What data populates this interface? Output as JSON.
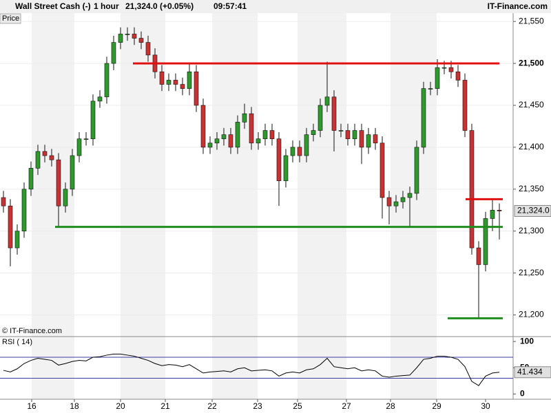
{
  "chart_data": [
    {
      "type": "candlestick",
      "title": "Wall Street Cash (-)",
      "interval": "1 hour",
      "price_text": "21,324.0 (+0.05%)",
      "time": "09:57:41",
      "brand": "IT-Finance.com",
      "panel_label": "Price",
      "copyright": "© IT-Finance.com",
      "open": [
        21340,
        21330,
        21280,
        21300,
        21350,
        21375,
        21395,
        21390,
        21385,
        21330,
        21350,
        21390,
        21410,
        21410,
        21455,
        21460,
        21500,
        21525,
        21535,
        21535,
        21530,
        21525,
        21510,
        21490,
        21475,
        21480,
        21475,
        21470,
        21490,
        21450,
        21400,
        21405,
        21410,
        21415,
        21400,
        21430,
        21440,
        21405,
        21410,
        21420,
        21410,
        21360,
        21390,
        21400,
        21390,
        21415,
        21420,
        21450,
        21460,
        21420,
        21420,
        21410,
        21420,
        21400,
        21415,
        21405,
        21340,
        21330,
        21335,
        21340,
        21345,
        21400,
        21470,
        21470,
        21495,
        21495,
        21490,
        21480,
        21420,
        21280,
        21260,
        21315,
        21325
      ],
      "high": [
        21348,
        21338,
        21308,
        21358,
        21383,
        21403,
        21403,
        21398,
        21393,
        21358,
        21398,
        21418,
        21418,
        21463,
        21468,
        21508,
        21533,
        21543,
        21543,
        21543,
        21538,
        21533,
        21518,
        21498,
        21488,
        21488,
        21483,
        21500,
        21498,
        21458,
        21413,
        21418,
        21423,
        21423,
        21438,
        21452,
        21448,
        21418,
        21428,
        21428,
        21418,
        21398,
        21408,
        21408,
        21423,
        21428,
        21458,
        21502,
        21468,
        21428,
        21428,
        21428,
        21428,
        21423,
        21423,
        21413,
        21348,
        21343,
        21348,
        21353,
        21408,
        21478,
        21478,
        21505,
        21503,
        21503,
        21498,
        21488,
        21428,
        21288,
        21323,
        21338,
        21333
      ],
      "low": [
        21322,
        21258,
        21272,
        21292,
        21342,
        21367,
        21382,
        21377,
        21305,
        21322,
        21342,
        21382,
        21402,
        21402,
        21447,
        21452,
        21492,
        21517,
        21527,
        21522,
        21517,
        21502,
        21482,
        21467,
        21467,
        21467,
        21462,
        21462,
        21442,
        21392,
        21392,
        21397,
        21402,
        21392,
        21392,
        21422,
        21397,
        21397,
        21402,
        21402,
        21330,
        21352,
        21382,
        21382,
        21382,
        21407,
        21412,
        21442,
        21395,
        21412,
        21402,
        21402,
        21380,
        21392,
        21397,
        21315,
        21308,
        21322,
        21327,
        21305,
        21337,
        21392,
        21462,
        21462,
        21487,
        21482,
        21472,
        21412,
        21272,
        21196,
        21252,
        21300,
        21290
      ],
      "close": [
        21330,
        21280,
        21300,
        21350,
        21375,
        21395,
        21390,
        21385,
        21330,
        21350,
        21390,
        21410,
        21410,
        21455,
        21460,
        21500,
        21525,
        21535,
        21535,
        21530,
        21525,
        21510,
        21490,
        21475,
        21480,
        21475,
        21470,
        21490,
        21450,
        21400,
        21405,
        21410,
        21415,
        21400,
        21430,
        21440,
        21405,
        21410,
        21420,
        21410,
        21360,
        21390,
        21400,
        21390,
        21415,
        21420,
        21450,
        21460,
        21420,
        21420,
        21410,
        21420,
        21400,
        21415,
        21405,
        21340,
        21330,
        21335,
        21340,
        21345,
        21400,
        21470,
        21470,
        21495,
        21495,
        21490,
        21480,
        21420,
        21280,
        21260,
        21315,
        21325,
        21324
      ],
      "up_color": "#2e9a2e",
      "down_color": "#c83232",
      "last_label": "21,324.0",
      "ylim": [
        21175,
        21560
      ],
      "yticks": [
        {
          "value": 21200,
          "label": "21,200"
        },
        {
          "value": 21250,
          "label": "21,250"
        },
        {
          "value": 21300,
          "label": "21,300"
        },
        {
          "value": 21350,
          "label": "21,350"
        },
        {
          "value": 21400,
          "label": "21,400"
        },
        {
          "value": 21450,
          "label": "21,450"
        },
        {
          "value": 21500,
          "label": "21,500"
        },
        {
          "value": 21550,
          "label": "21,550"
        }
      ],
      "xlim": [
        -0.5,
        74
      ],
      "xticks": [
        {
          "value": 4.1,
          "label": "16"
        },
        {
          "value": 10.3,
          "label": "18"
        },
        {
          "value": 17,
          "label": "20"
        },
        {
          "value": 23.5,
          "label": "21"
        },
        {
          "value": 30.3,
          "label": "22"
        },
        {
          "value": 36.9,
          "label": "23"
        },
        {
          "value": 42.7,
          "label": "25"
        },
        {
          "value": 49.8,
          "label": "27"
        },
        {
          "value": 56.2,
          "label": "28"
        },
        {
          "value": 62.9,
          "label": "29"
        },
        {
          "value": 70,
          "label": "30"
        }
      ],
      "levels": [
        {
          "value": 21500,
          "x": [
            18.8,
            72
          ],
          "color": "#e01010"
        },
        {
          "value": 21305,
          "x": [
            7.5,
            72.5
          ],
          "color": "#1e8c1e"
        },
        {
          "value": 21338,
          "x": [
            67.1,
            72.5
          ],
          "color": "#e01010"
        },
        {
          "value": 21196,
          "x": [
            64.5,
            72.5
          ],
          "color": "#1e8c1e"
        }
      ]
    },
    {
      "type": "line",
      "title": "RSI ( 14)",
      "color": "#000000",
      "values": [
        45,
        42,
        48,
        58,
        64,
        68,
        66,
        64,
        55,
        58,
        62,
        64,
        63,
        70,
        71,
        74,
        76,
        76,
        74,
        72,
        68,
        64,
        58,
        54,
        56,
        55,
        52,
        56,
        48,
        40,
        42,
        43,
        44,
        42,
        48,
        50,
        44,
        45,
        46,
        44,
        34,
        40,
        42,
        40,
        46,
        48,
        56,
        68,
        52,
        50,
        48,
        50,
        44,
        46,
        44,
        34,
        32,
        34,
        35,
        36,
        50,
        66,
        68,
        72,
        72,
        70,
        66,
        52,
        24,
        16,
        34,
        40,
        41.434
      ],
      "last_label": "41.434",
      "ylim": [
        -10,
        108
      ],
      "yticks": [
        0,
        50,
        100
      ],
      "levels": [
        30,
        70
      ],
      "level_color": "#3a3aa0"
    }
  ]
}
